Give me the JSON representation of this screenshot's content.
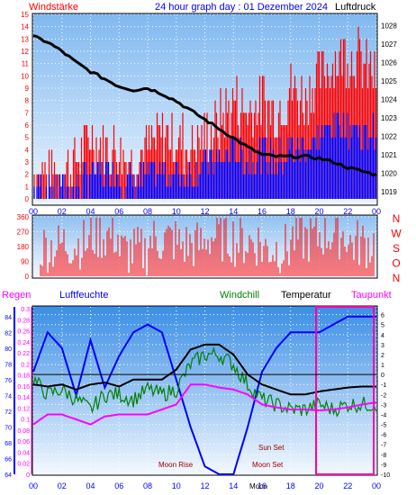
{
  "header": {
    "left_label": "Windstärke",
    "title": "24 hour graph day : 01 Dezember 2024",
    "right_label": "Luftdruck"
  },
  "labels": {
    "regen": "Regen",
    "luftfeuchte": "Luftfeuchte",
    "windchill": "Windchill",
    "temperatur": "Temperatur",
    "taupunkt": "Taupunkt",
    "sun_set": "Sun Set",
    "moon_rise": "Moon Rise",
    "moon_set": "Moon Set",
    "moon_axis": "Moon"
  },
  "colors": {
    "wind_bar": "#ff0000",
    "gust_bar": "#0000ff",
    "pressure": "#000000",
    "humidity": "#0000ff",
    "windchill": "#008000",
    "temperature": "#000000",
    "dewpoint": "#ff00ff",
    "marker": "#ff00aa",
    "regen": "#ff00ff",
    "luftfeuchte": "#0000ff",
    "windchill_label": "#008000",
    "temperatur_label": "#000000",
    "taupunkt_label": "#ff00ff",
    "title_label": "#0000ff",
    "header_red": "#ff0000",
    "header_black": "#000000",
    "dir_labels": "#ff0000"
  },
  "chart_data": [
    {
      "type": "line",
      "name": "wind_pressure",
      "x_ticks": [
        "00",
        "02",
        "04",
        "06",
        "08",
        "10",
        "12",
        "14",
        "16",
        "18",
        "20",
        "22",
        "00"
      ],
      "y_left_ticks": [
        "0",
        "1",
        "2",
        "3",
        "4",
        "5",
        "6",
        "7",
        "8",
        "9",
        "10",
        "11",
        "12",
        "13",
        "14",
        "15"
      ],
      "y_right_ticks": [
        "1019",
        "1020",
        "1021",
        "1022",
        "1023",
        "1024",
        "1025",
        "1026",
        "1027",
        "1028"
      ],
      "ylim_left": [
        0,
        15
      ],
      "ylim_right": [
        1018.6,
        1028.6
      ],
      "series": [
        {
          "color": "#000000",
          "x": [
            0,
            1,
            2,
            3,
            4,
            5,
            6,
            7,
            8,
            9,
            10,
            11,
            12,
            13,
            14,
            15,
            16,
            17,
            18,
            19,
            20,
            21,
            22,
            23,
            24
          ],
          "values": [
            1027.4,
            1027.1,
            1026.6,
            1026.0,
            1025.5,
            1025.1,
            1024.7,
            1024.5,
            1024.6,
            1024.3,
            1023.9,
            1023.4,
            1022.9,
            1022.4,
            1021.9,
            1021.4,
            1021.0,
            1020.9,
            1020.9,
            1020.9,
            1020.8,
            1020.6,
            1020.3,
            1020.1,
            1019.9
          ]
        },
        {
          "color": "#ff0000",
          "x": [
            0,
            1,
            2,
            3,
            4,
            5,
            6,
            7,
            8,
            9,
            10,
            11,
            12,
            13,
            14,
            15,
            16,
            17,
            18,
            19,
            20,
            21,
            22,
            23,
            24
          ],
          "values": [
            2,
            2,
            2,
            3,
            5,
            4,
            4,
            3,
            4,
            5,
            5,
            4,
            5,
            6,
            8,
            7,
            8,
            7,
            9,
            8,
            10,
            11,
            12,
            11,
            10
          ]
        },
        {
          "color": "#0000ff",
          "x": [
            0,
            1,
            2,
            3,
            4,
            5,
            6,
            7,
            8,
            9,
            10,
            11,
            12,
            13,
            14,
            15,
            16,
            17,
            18,
            19,
            20,
            21,
            22,
            23,
            24
          ],
          "values": [
            1,
            1,
            1,
            1,
            2,
            2,
            2,
            1,
            2,
            2,
            2,
            2,
            3,
            3,
            4,
            3,
            4,
            3,
            4,
            4,
            5,
            6,
            6,
            5,
            6
          ]
        }
      ]
    },
    {
      "type": "line",
      "name": "wind_direction",
      "y_ticks": [
        "0",
        "90",
        "180",
        "270",
        "360"
      ],
      "ylim": [
        0,
        360
      ],
      "right_labels": [
        "N",
        "W",
        "S",
        "O",
        "N"
      ],
      "x": [
        0,
        2,
        4,
        6,
        8,
        10,
        12,
        14,
        16,
        18,
        20,
        22,
        24
      ],
      "values": [
        180,
        200,
        250,
        150,
        220,
        190,
        240,
        210,
        170,
        230,
        260,
        200,
        180
      ]
    },
    {
      "type": "line",
      "name": "temperature_humidity",
      "y_rain_ticks": [
        "0",
        "0.02",
        "0.04",
        "0.06",
        "0.08",
        "0.1",
        "0.12",
        "0.14",
        "0.16",
        "0.18",
        "0.2",
        "0.22",
        "0.24",
        "0.26",
        "0.28",
        "0.3"
      ],
      "y_hum_ticks": [
        "64",
        "66",
        "68",
        "70",
        "72",
        "74",
        "76",
        "78",
        "80",
        "82",
        "84"
      ],
      "y_temp_ticks": [
        "-10",
        "-9",
        "-8",
        "-7",
        "-6",
        "-5",
        "-4",
        "-3",
        "-2",
        "-1",
        "0",
        "1",
        "2",
        "3",
        "4",
        "5",
        "6"
      ],
      "ylim_temp": [
        -10,
        6.6
      ],
      "ylim_hum": [
        64,
        85
      ],
      "series": [
        {
          "name": "Luftfeuchte",
          "color": "#0000ff",
          "x": [
            0,
            1,
            2,
            3,
            4,
            5,
            6,
            7,
            8,
            9,
            10,
            11,
            12,
            13,
            14,
            15,
            16,
            17,
            18,
            19,
            20,
            21,
            22,
            23,
            24
          ],
          "values": [
            77,
            82,
            80,
            74,
            81,
            75,
            79,
            82,
            83,
            82,
            76,
            70,
            65,
            64,
            64,
            70,
            77,
            80,
            82,
            82,
            82,
            83,
            84,
            84,
            84
          ]
        },
        {
          "name": "Windchill",
          "color": "#008000",
          "x": [
            0,
            1,
            2,
            3,
            4,
            5,
            6,
            7,
            8,
            9,
            10,
            11,
            12,
            13,
            14,
            15,
            16,
            17,
            18,
            19,
            20,
            21,
            22,
            23,
            24
          ],
          "values": [
            -0.5,
            -2.0,
            -1.5,
            -2.5,
            -3.5,
            -2.0,
            -2.0,
            -2.5,
            -1.5,
            -2.0,
            -1.5,
            1.0,
            2.0,
            2.0,
            1.0,
            -1.0,
            -2.5,
            -3.0,
            -3.5,
            -3.5,
            -3.0,
            -3.5,
            -3.0,
            -3.0,
            -3.0
          ]
        },
        {
          "name": "Temperatur",
          "color": "#000000",
          "x": [
            0,
            1,
            2,
            3,
            4,
            5,
            6,
            7,
            8,
            9,
            10,
            11,
            12,
            13,
            14,
            15,
            16,
            17,
            18,
            19,
            20,
            21,
            22,
            23,
            24
          ],
          "values": [
            -1.0,
            -1.2,
            -1.0,
            -1.5,
            -1.0,
            -0.8,
            -1.2,
            -0.5,
            -0.5,
            -0.5,
            0.5,
            2.5,
            3.0,
            3.0,
            2.0,
            0.0,
            -1.0,
            -1.5,
            -2.0,
            -2.0,
            -1.7,
            -1.5,
            -1.3,
            -1.2,
            -1.2
          ]
        },
        {
          "name": "Taupunkt",
          "color": "#ff00ff",
          "x": [
            0,
            1,
            2,
            3,
            4,
            5,
            6,
            7,
            8,
            9,
            10,
            11,
            12,
            13,
            14,
            15,
            16,
            17,
            18,
            19,
            20,
            21,
            22,
            23,
            24
          ],
          "values": [
            -5.0,
            -4.0,
            -4.0,
            -4.5,
            -5.0,
            -4.2,
            -4.0,
            -4.0,
            -4.0,
            -3.5,
            -3.0,
            -1.0,
            -1.0,
            -1.3,
            -1.5,
            -2.0,
            -3.0,
            -3.3,
            -3.5,
            -3.5,
            -3.6,
            -3.5,
            -3.3,
            -3.0,
            -2.8
          ]
        }
      ]
    }
  ]
}
